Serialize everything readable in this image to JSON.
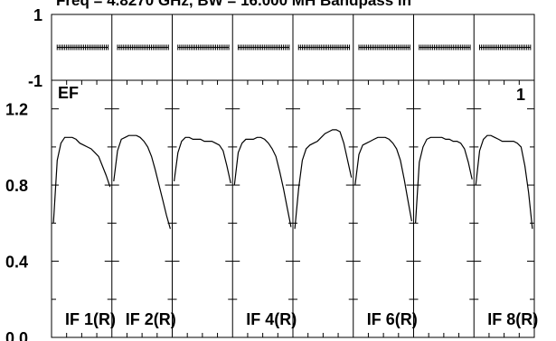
{
  "header": {
    "title": "Freq = 4.8270 GHz, BW = 16.000 MH   Bandpass in"
  },
  "chart_data": {
    "type": "line",
    "panel_count": 8,
    "top_panel": {
      "ylim": [
        -1,
        1
      ],
      "ytick_labels": [
        "1",
        "-1"
      ],
      "series": [
        {
          "x": [
            1.5,
            2,
            2.5,
            3,
            3.5,
            4,
            4.5,
            5,
            5.5,
            6,
            6.5,
            7,
            7.5,
            8,
            8.5,
            9,
            9.5,
            10,
            10.5,
            11,
            11.5,
            12,
            12.5,
            13,
            13.5,
            14,
            14.5,
            15
          ],
          "y": [
            0,
            0,
            0,
            0,
            0,
            0,
            0,
            0,
            0,
            0,
            0,
            0,
            0,
            0,
            0,
            0,
            0,
            0,
            0,
            0,
            0,
            0,
            0,
            0,
            0,
            0,
            0,
            0
          ]
        }
      ]
    },
    "bottom_panel": {
      "ylim": [
        0.0,
        1.35
      ],
      "ytick_labels": [
        "1.2",
        "0.8",
        "0.4",
        "0.0"
      ],
      "yticks": [
        1.2,
        0.8,
        0.4,
        0.0
      ],
      "inner_label": "EF",
      "corner_label": "1",
      "if_labels": [
        {
          "text": "IF 1(R)",
          "panel": 1
        },
        {
          "text": "IF 2(R)",
          "panel": 2
        },
        {
          "text": "IF 4(R)",
          "panel": 4
        },
        {
          "text": "IF 6(R)",
          "panel": 6
        },
        {
          "text": "IF 8(R)",
          "panel": 8
        }
      ],
      "series": [
        {
          "x": [
            0.5,
            1.5,
            2.5,
            3.5,
            4.5,
            5.5,
            6.5,
            7.5,
            8.5,
            9.5,
            10.5,
            11.5,
            12.5,
            13.5,
            14.5,
            15.5
          ],
          "y": [
            0.6,
            0.93,
            1.02,
            1.05,
            1.05,
            1.05,
            1.04,
            1.02,
            1.01,
            1.0,
            0.99,
            0.97,
            0.95,
            0.9,
            0.85,
            0.79
          ]
        },
        {
          "x": [
            0.5,
            1.5,
            2.5,
            3.5,
            4.5,
            5.5,
            6.5,
            7.5,
            8.5,
            9.5,
            10.5,
            11.5,
            12.5,
            13.5,
            14.5,
            15.5
          ],
          "y": [
            0.82,
            0.98,
            1.04,
            1.05,
            1.06,
            1.06,
            1.06,
            1.05,
            1.03,
            1.0,
            0.95,
            0.88,
            0.8,
            0.72,
            0.64,
            0.57
          ]
        },
        {
          "x": [
            0.5,
            1.5,
            2.5,
            3.5,
            4.5,
            5.5,
            6.5,
            7.5,
            8.5,
            9.5,
            10.5,
            11.5,
            12.5,
            13.5,
            14.5,
            15.5
          ],
          "y": [
            0.82,
            0.97,
            1.03,
            1.05,
            1.05,
            1.04,
            1.04,
            1.04,
            1.03,
            1.03,
            1.03,
            1.02,
            1.01,
            0.98,
            0.9,
            0.81
          ]
        },
        {
          "x": [
            0.5,
            1.5,
            2.5,
            3.5,
            4.5,
            5.5,
            6.5,
            7.5,
            8.5,
            9.5,
            10.5,
            11.5,
            12.5,
            13.5,
            14.5,
            15.5
          ],
          "y": [
            0.8,
            0.97,
            1.02,
            1.04,
            1.04,
            1.04,
            1.05,
            1.05,
            1.04,
            1.02,
            0.99,
            0.95,
            0.87,
            0.78,
            0.68,
            0.58
          ]
        },
        {
          "x": [
            0.5,
            1.5,
            2.5,
            3.5,
            4.5,
            5.5,
            6.5,
            7.5,
            8.5,
            9.5,
            10.5,
            11.5,
            12.5,
            13.5,
            14.5,
            15.5
          ],
          "y": [
            0.57,
            0.78,
            0.93,
            0.99,
            1.01,
            1.02,
            1.03,
            1.05,
            1.07,
            1.08,
            1.09,
            1.09,
            1.08,
            1.02,
            0.93,
            0.84
          ]
        },
        {
          "x": [
            0.5,
            1.5,
            2.5,
            3.5,
            4.5,
            5.5,
            6.5,
            7.5,
            8.5,
            9.5,
            10.5,
            11.5,
            12.5,
            13.5,
            14.5,
            15.5
          ],
          "y": [
            0.8,
            0.96,
            1.01,
            1.02,
            1.03,
            1.04,
            1.05,
            1.05,
            1.05,
            1.04,
            1.02,
            0.99,
            0.93,
            0.83,
            0.72,
            0.61
          ]
        },
        {
          "x": [
            0.5,
            1.5,
            2.5,
            3.5,
            4.5,
            5.5,
            6.5,
            7.5,
            8.5,
            9.5,
            10.5,
            11.5,
            12.5,
            13.5,
            14.5,
            15.5
          ],
          "y": [
            0.6,
            0.92,
            1.0,
            1.04,
            1.05,
            1.05,
            1.05,
            1.05,
            1.04,
            1.04,
            1.03,
            1.03,
            1.02,
            0.99,
            0.92,
            0.83
          ]
        },
        {
          "x": [
            0.5,
            1.5,
            2.5,
            3.5,
            4.5,
            5.5,
            6.5,
            7.5,
            8.5,
            9.5,
            10.5,
            11.5,
            12.5,
            13.5,
            14.5,
            15.5
          ],
          "y": [
            0.8,
            0.98,
            1.04,
            1.06,
            1.06,
            1.05,
            1.04,
            1.03,
            1.03,
            1.03,
            1.03,
            1.02,
            1.0,
            0.9,
            0.76,
            0.57
          ]
        }
      ]
    },
    "colors": {
      "line": "#000000",
      "background": "#ffffff"
    }
  }
}
